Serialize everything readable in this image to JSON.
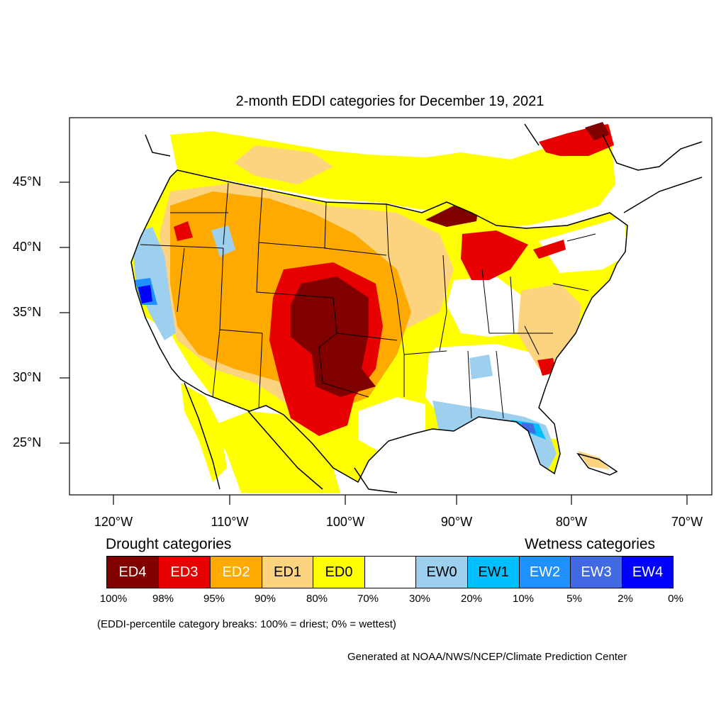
{
  "title": "2-month EDDI categories for December 19, 2021",
  "lat_labels": [
    "45°N",
    "40°N",
    "35°N",
    "30°N",
    "25°N"
  ],
  "lon_labels": [
    "120°W",
    "110°W",
    "100°W",
    "90°W",
    "80°W",
    "70°W"
  ],
  "drought_heading": "Drought categories",
  "wetness_heading": "Wetness categories",
  "categories": [
    {
      "label": "ED4",
      "color": "#800000",
      "text_color": "#ffffff"
    },
    {
      "label": "ED3",
      "color": "#e60000",
      "text_color": "#ffffff"
    },
    {
      "label": "ED2",
      "color": "#ffaa00",
      "text_color": "#ffffff"
    },
    {
      "label": "ED1",
      "color": "#fcd37f",
      "text_color": "#000000"
    },
    {
      "label": "ED0",
      "color": "#ffff00",
      "text_color": "#000000"
    },
    {
      "label": "",
      "color": "#ffffff",
      "text_color": "#000000"
    },
    {
      "label": "EW0",
      "color": "#9dd0ee",
      "text_color": "#000000"
    },
    {
      "label": "EW1",
      "color": "#00bfff",
      "text_color": "#000000"
    },
    {
      "label": "EW2",
      "color": "#1e90ff",
      "text_color": "#ffffff"
    },
    {
      "label": "EW3",
      "color": "#4169e1",
      "text_color": "#ffffff"
    },
    {
      "label": "EW4",
      "color": "#0000ff",
      "text_color": "#ffffff"
    }
  ],
  "percentiles": [
    "100%",
    "98%",
    "95%",
    "90%",
    "80%",
    "70%",
    "30%",
    "20%",
    "10%",
    "5%",
    "2%",
    "0%"
  ],
  "note": "(EDDI-percentile category breaks: 100% = driest; 0% = wettest)",
  "credit": "Generated at NOAA/NWS/NCEP/Climate Prediction Center"
}
